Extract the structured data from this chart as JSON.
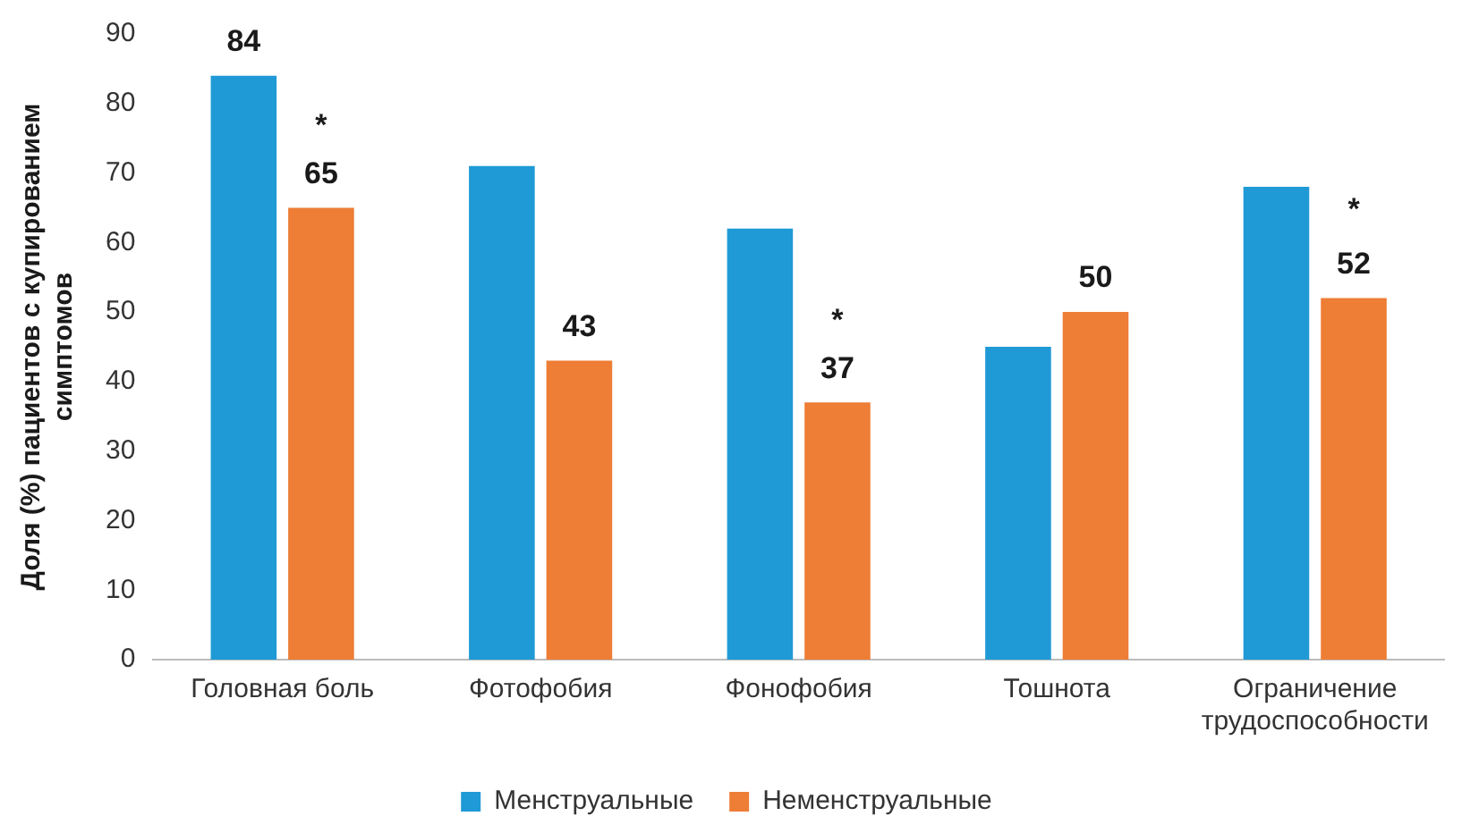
{
  "chart_data": {
    "type": "bar",
    "ylabel": "Доля (%) пациентов с купированием симптомов",
    "categories": [
      "Головная боль",
      "Фотофобия",
      "Фонофобия",
      "Тошнота",
      "Ограничение трудоспособности"
    ],
    "series": [
      {
        "name": "Менструальные",
        "color": "#1f9ad6",
        "values": [
          84,
          71,
          62,
          45,
          68
        ],
        "value_labels": [
          "84",
          null,
          null,
          null,
          null
        ]
      },
      {
        "name": "Неменструальные",
        "color": "#ee7d35",
        "values": [
          65,
          43,
          37,
          50,
          52
        ],
        "value_labels": [
          "65",
          "43",
          "37",
          "50",
          "52"
        ]
      }
    ],
    "ylim": [
      0,
      90
    ],
    "yticks": [
      0,
      10,
      20,
      30,
      40,
      50,
      60,
      70,
      80,
      90
    ],
    "grid": false,
    "legend": "bottom",
    "annotations": [
      {
        "text": "*",
        "x": "Головная боль",
        "y": 77
      },
      {
        "text": "*",
        "x": "Фонофобия",
        "y": 49
      },
      {
        "text": "*",
        "x": "Ограничение трудоспособности",
        "y": 65
      }
    ]
  }
}
